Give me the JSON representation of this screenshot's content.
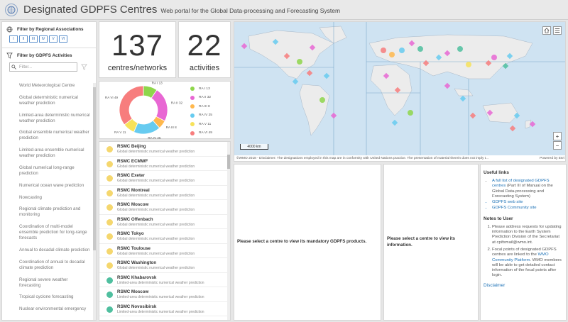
{
  "header": {
    "title": "Designated GDPFS Centres",
    "subtitle": "Web portal for the Global Data-processing and Forecasting System"
  },
  "sidebar": {
    "ra_title": "Filter by Regional Associations",
    "ra_buttons": [
      "I",
      "II",
      "III",
      "IV",
      "V",
      "VI"
    ],
    "act_title": "Filter by GDPFS Activities",
    "filter_placeholder": "Filter...",
    "activities": [
      "World Meteorological Centre",
      "Global deterministic numerical weather prediction",
      "Limited-area deterministic numerical weather prediction",
      "Global ensemble numerical weather prediction",
      "Limited-area ensemble numerical weather prediction",
      "Global numerical long-range prediction",
      "Numerical ocean wave prediction",
      "Nowcasting",
      "Regional climate prediction and monitoring",
      "Coordination of multi-model ensemble prediction for long-range forecasts",
      "Annual to decadal climate prediction",
      "Coordination of annual to decadal climate prediction",
      "Regional severe weather forecasting",
      "Tropical cyclone forecasting",
      "Nuclear environmental emergency"
    ]
  },
  "counters": {
    "centres_value": "137",
    "centres_label": "centres/networks",
    "activities_value": "22",
    "activities_label": "activities"
  },
  "chart_data": {
    "type": "pie",
    "categories": [
      "RA I",
      "RA II",
      "RA III",
      "RA IV",
      "RA V",
      "RA VI"
    ],
    "values": [
      13,
      32,
      8,
      25,
      11,
      49
    ],
    "labels": [
      "RA I 13",
      "RA II 32",
      "RA III 8",
      "RA IV 25",
      "RA V 11",
      "RA VI 49"
    ],
    "colors": [
      "#8ed64b",
      "#e867d3",
      "#ffb84d",
      "#67cbf0",
      "#f7e25a",
      "#f77d7d"
    ],
    "legend": "right"
  },
  "centres": [
    {
      "name": "RSMC Beijing",
      "desc": "Global deterministic numerical weather prediction",
      "color": "#f5d76e"
    },
    {
      "name": "RSMC ECMWF",
      "desc": "Global deterministic numerical weather prediction",
      "color": "#f5d76e"
    },
    {
      "name": "RSMC Exeter",
      "desc": "Global deterministic numerical weather prediction",
      "color": "#f5d76e"
    },
    {
      "name": "RSMC Montreal",
      "desc": "Global deterministic numerical weather prediction",
      "color": "#f5d76e"
    },
    {
      "name": "RSMC Moscow",
      "desc": "Global deterministic numerical weather prediction",
      "color": "#f5d76e"
    },
    {
      "name": "RSMC Offenbach",
      "desc": "Global deterministic numerical weather prediction",
      "color": "#f5d76e"
    },
    {
      "name": "RSMC Tokyo",
      "desc": "Global deterministic numerical weather prediction",
      "color": "#f5d76e"
    },
    {
      "name": "RSMC Toulouse",
      "desc": "Global deterministic numerical weather prediction",
      "color": "#f5d76e"
    },
    {
      "name": "RSMC Washington",
      "desc": "Global deterministic numerical weather prediction",
      "color": "#f5d76e"
    },
    {
      "name": "RSMC Khabarovsk",
      "desc": "Limited-area deterministic numerical weather prediction",
      "color": "#4fbf9f"
    },
    {
      "name": "RSMC Moscow",
      "desc": "Limited-area deterministic numerical weather prediction",
      "color": "#4fbf9f"
    },
    {
      "name": "RSMC Novosibirsk",
      "desc": "Limited-area deterministic numerical weather prediction",
      "color": "#4fbf9f"
    }
  ],
  "map": {
    "disclaimer": "©WMO 2018 - Disclaimer: The designations employed in this map are in conformity with United Nations practice. The presentation of material therein does not imply t...",
    "powered_by": "Powered by Esri",
    "scale": "4000 km",
    "zoom_in": "+",
    "zoom_out": "−"
  },
  "products": {
    "message": "Please select a centre to view its mandatory GDPFS products."
  },
  "info": {
    "message": "Please select a centre to view its information."
  },
  "links": {
    "useful_title": "Useful links",
    "l1_link": "A full list of designated GDPFS centres",
    "l1_rest": " (Part III of Manual on the Global Data-processing and Forecasting System)",
    "l2": "GDPFS web site",
    "l3": "GDPFS Community site",
    "notes_title": "Notes to User",
    "n1": "Please address requests for updating information to the Earth System Prediction Division of the Secretariat at cpifsmail@wmo.int.",
    "n2_a": "Focal points of designated GDPFS centres are linked to the ",
    "n2_link": "WMO Community Platform",
    "n2_b": ". WMO members will be able to get detailed contact information of the focal points after login.",
    "disclaimer": "Disclaimer"
  }
}
